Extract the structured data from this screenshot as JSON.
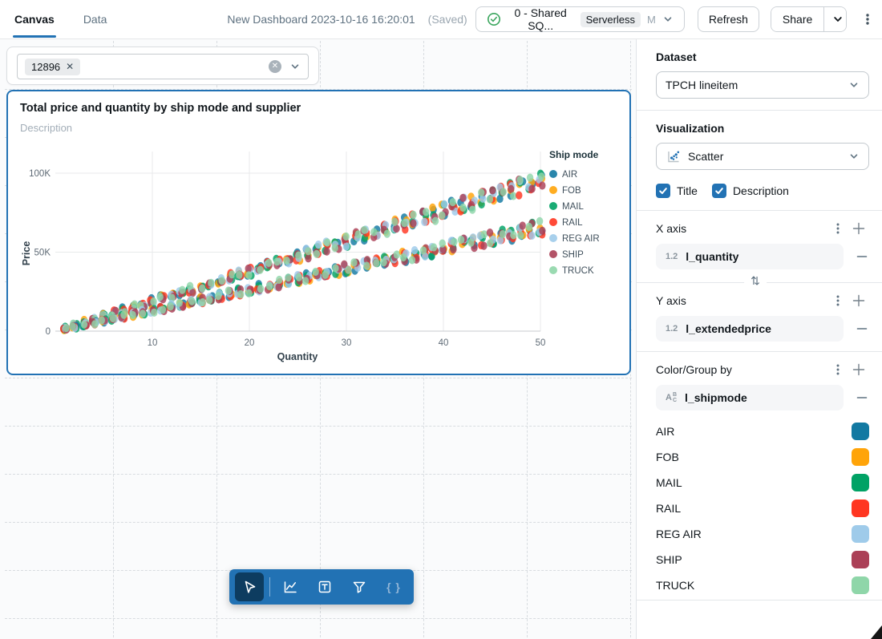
{
  "topbar": {
    "tabs": [
      {
        "label": "Canvas",
        "active": true
      },
      {
        "label": "Data",
        "active": false
      }
    ],
    "title": "New Dashboard 2023-10-16 16:20:01",
    "saved_status": "(Saved)",
    "warehouse": {
      "name": "0 - Shared SQ...",
      "badge": "Serverless",
      "size": "M",
      "status_icon": "check-circle",
      "status_color": "#3BA65E"
    },
    "refresh_label": "Refresh",
    "share_label": "Share",
    "accent_color": "#2272B4"
  },
  "canvas": {
    "filter_widget": {
      "selected_tag": "12896"
    },
    "chart_widget": {
      "title": "Total price and quantity by ship mode and supplier",
      "description_placeholder": "Description"
    }
  },
  "toolbar": {
    "tools": [
      {
        "name": "select",
        "icon": "cursor-icon",
        "selected": true
      },
      {
        "name": "add-visualization",
        "icon": "chart-icon",
        "selected": false
      },
      {
        "name": "add-text",
        "icon": "text-icon",
        "selected": false
      },
      {
        "name": "add-filter",
        "icon": "filter-icon",
        "selected": false
      },
      {
        "name": "edit-code",
        "icon": "braces-icon",
        "selected": false,
        "glyph": "{ }"
      }
    ]
  },
  "sidebar": {
    "dataset": {
      "label": "Dataset",
      "value": "TPCH lineitem"
    },
    "visualization": {
      "label": "Visualization",
      "value": "Scatter"
    },
    "options": [
      {
        "label": "Title",
        "checked": true
      },
      {
        "label": "Description",
        "checked": true
      }
    ],
    "x_axis": {
      "label": "X axis",
      "field": "l_quantity",
      "field_type": "1.2"
    },
    "y_axis": {
      "label": "Y axis",
      "field": "l_extendedprice",
      "field_type": "1.2"
    },
    "color_group": {
      "label": "Color/Group by",
      "field": "l_shipmode",
      "field_type": "ABC"
    },
    "color_mappings": [
      {
        "label": "AIR",
        "color": "#1279A2"
      },
      {
        "label": "FOB",
        "color": "#FFA409"
      },
      {
        "label": "MAIL",
        "color": "#00A265"
      },
      {
        "label": "RAIL",
        "color": "#FF3621"
      },
      {
        "label": "REG AIR",
        "color": "#9FCBEA"
      },
      {
        "label": "SHIP",
        "color": "#AB4057"
      },
      {
        "label": "TRUCK",
        "color": "#8FD6A9"
      }
    ]
  },
  "chart_data": {
    "type": "scatter",
    "title": "Total price and quantity by ship mode and supplier",
    "xlabel": "Quantity",
    "ylabel": "Price",
    "x_ticks": [
      10,
      20,
      30,
      40,
      50
    ],
    "y_ticks": [
      {
        "v": 0,
        "label": "0"
      },
      {
        "v": 50000,
        "label": "50K"
      },
      {
        "v": 100000,
        "label": "100K"
      }
    ],
    "xlim": [
      0,
      51
    ],
    "ylim": [
      0,
      105000
    ],
    "grid": true,
    "legend_title": "Ship mode",
    "legend_position": "right",
    "series": [
      {
        "name": "AIR",
        "color": "#1279A2"
      },
      {
        "name": "FOB",
        "color": "#FFA409"
      },
      {
        "name": "MAIL",
        "color": "#00A265"
      },
      {
        "name": "RAIL",
        "color": "#FF3621"
      },
      {
        "name": "REG AIR",
        "color": "#9FCBEA"
      },
      {
        "name": "SHIP",
        "color": "#AB4057"
      },
      {
        "name": "TRUCK",
        "color": "#8FD6A9"
      }
    ],
    "x_values": {
      "min": 1,
      "max": 50,
      "step": 1
    },
    "bands": [
      {
        "name": "high-price-band",
        "slope_per_quantity": 1900,
        "jitter_base": 1200,
        "jitter_per_quantity": 85
      },
      {
        "name": "low-price-band",
        "slope_per_quantity": 1310,
        "jitter_base": 1000,
        "jitter_per_quantity": 70
      }
    ],
    "seed": 11,
    "point_opacity": 0.82
  }
}
